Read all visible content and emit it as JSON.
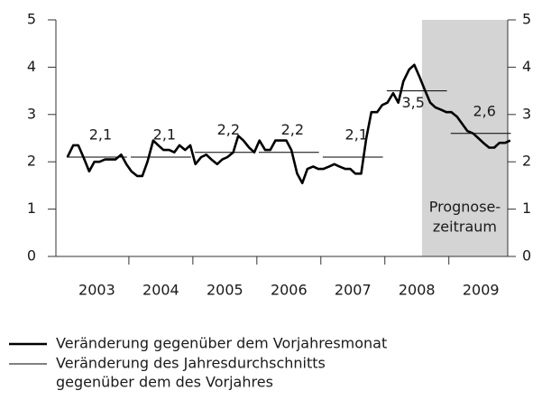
{
  "chart_data": {
    "type": "line",
    "xlim": [
      2002.86,
      2009.92
    ],
    "xticks": [
      {
        "value": 2003.5,
        "label": "2003"
      },
      {
        "value": 2004.5,
        "label": "2004"
      },
      {
        "value": 2005.5,
        "label": "2005"
      },
      {
        "value": 2006.5,
        "label": "2006"
      },
      {
        "value": 2007.5,
        "label": "2007"
      },
      {
        "value": 2008.5,
        "label": "2008"
      },
      {
        "value": 2009.5,
        "label": "2009"
      }
    ],
    "ylim": [
      0,
      5
    ],
    "yticks": [
      0,
      1,
      2,
      3,
      4,
      5
    ],
    "y2lim": [
      0,
      5
    ],
    "y2ticks": [
      0,
      1,
      2,
      3,
      4,
      5
    ],
    "shaded_region": {
      "xrange": [
        2008.58,
        2009.92
      ],
      "color": "#d4d4d4",
      "label": [
        "Prognose-",
        "zeitraum"
      ]
    },
    "series": [
      {
        "name": [
          "Veränderung gegenüber dem Vorjahresmonat"
        ],
        "color": "#000000",
        "x": [
          2003.04,
          2003.13,
          2003.21,
          2003.29,
          2003.38,
          2003.46,
          2003.54,
          2003.63,
          2003.71,
          2003.79,
          2003.88,
          2003.96,
          2004.04,
          2004.13,
          2004.21,
          2004.29,
          2004.38,
          2004.46,
          2004.54,
          2004.63,
          2004.71,
          2004.79,
          2004.88,
          2004.96,
          2005.04,
          2005.13,
          2005.21,
          2005.29,
          2005.38,
          2005.46,
          2005.54,
          2005.63,
          2005.71,
          2005.79,
          2005.88,
          2005.96,
          2006.04,
          2006.13,
          2006.21,
          2006.29,
          2006.38,
          2006.46,
          2006.54,
          2006.63,
          2006.71,
          2006.79,
          2006.88,
          2006.96,
          2007.04,
          2007.13,
          2007.21,
          2007.29,
          2007.38,
          2007.46,
          2007.54,
          2007.63,
          2007.71,
          2007.79,
          2007.88,
          2007.96,
          2008.04,
          2008.13,
          2008.21,
          2008.29,
          2008.38,
          2008.46,
          2008.54,
          2008.63,
          2008.71,
          2008.79,
          2008.88,
          2008.96,
          2009.04,
          2009.13,
          2009.21,
          2009.29,
          2009.38,
          2009.46,
          2009.54,
          2009.63,
          2009.71,
          2009.79,
          2009.88,
          2009.96
        ],
        "values": [
          2.1,
          2.35,
          2.35,
          2.1,
          1.8,
          2.0,
          2.0,
          2.05,
          2.05,
          2.05,
          2.15,
          1.95,
          1.8,
          1.7,
          1.7,
          2.0,
          2.45,
          2.35,
          2.25,
          2.25,
          2.2,
          2.35,
          2.25,
          2.35,
          1.95,
          2.1,
          2.15,
          2.05,
          1.95,
          2.05,
          2.1,
          2.2,
          2.55,
          2.45,
          2.3,
          2.2,
          2.45,
          2.25,
          2.25,
          2.45,
          2.45,
          2.45,
          2.25,
          1.75,
          1.55,
          1.85,
          1.9,
          1.85,
          1.85,
          1.9,
          1.95,
          1.9,
          1.85,
          1.85,
          1.75,
          1.75,
          2.5,
          3.05,
          3.05,
          3.2,
          3.25,
          3.45,
          3.25,
          3.7,
          3.95,
          4.05,
          3.8,
          3.5,
          3.25,
          3.15,
          3.1,
          3.05,
          3.05,
          2.95,
          2.8,
          2.65,
          2.6,
          2.5,
          2.4,
          2.3,
          2.3,
          2.4,
          2.4,
          2.45
        ]
      },
      {
        "name": [
          "Veränderung des Jahresdurchschnitts",
          "gegenüber dem des Vorjahres"
        ],
        "color": "#000000",
        "x": [
          2003.5,
          2004.5,
          2005.5,
          2006.5,
          2007.5,
          2008.5,
          2009.5
        ],
        "values": [
          2.1,
          2.1,
          2.2,
          2.2,
          2.1,
          3.5,
          2.6
        ],
        "value_labels": [
          "2,1",
          "2,1",
          "2,2",
          "2,2",
          "2,1",
          "3,5",
          "2,6"
        ]
      }
    ]
  }
}
